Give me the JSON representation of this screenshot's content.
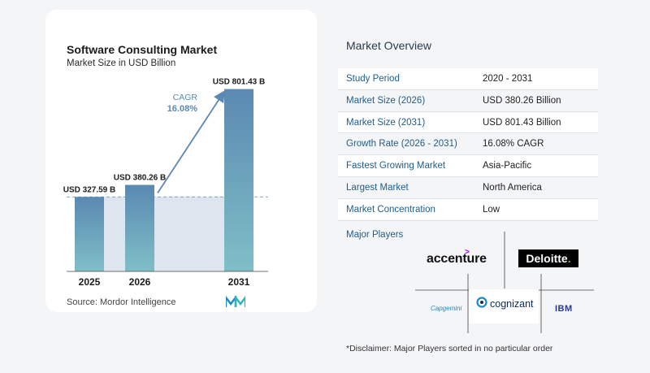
{
  "chart_data": {
    "type": "bar",
    "title": "Software Consulting Market",
    "subtitle": "Market Size in USD Billion",
    "categories": [
      "2025",
      "2026",
      "2031"
    ],
    "values": [
      327.59,
      380.26,
      801.43
    ],
    "value_labels": [
      "USD 327.59 B",
      "USD 380.26 B",
      "USD 801.43 B"
    ],
    "annotation": {
      "label": "CAGR",
      "value": "16.08%"
    },
    "ylim": [
      0,
      850
    ],
    "grid": false,
    "colors": {
      "bar_top": "#5b89b2",
      "bar_bottom": "#7fbfc7",
      "baseline_fill": "#dde6ef",
      "arrow": "#5b89b2",
      "annotation_text": "#5b89b2"
    }
  },
  "source_text": "Source:  Mordor Intelligence",
  "overview": {
    "title": "Market Overview",
    "rows": [
      {
        "label": "Study Period",
        "value": "2020 - 2031"
      },
      {
        "label": "Market Size (2026)",
        "value": "USD 380.26 Billion"
      },
      {
        "label": "Market Size (2031)",
        "value": "USD 801.43 Billion"
      },
      {
        "label": "Growth Rate (2026 - 2031)",
        "value": "16.08% CAGR"
      },
      {
        "label": "Fastest Growing Market",
        "value": "Asia-Pacific"
      },
      {
        "label": "Largest Market",
        "value": "North America"
      },
      {
        "label": "Market Concentration",
        "value": "Low"
      }
    ]
  },
  "players": {
    "title": "Major Players",
    "accenture": "accenture",
    "deloitte": "Deloitte",
    "cognizant": "cognizant",
    "capgemini": "Capgemini",
    "ibm": "IBM"
  },
  "disclaimer": "*Disclaimer: Major Players sorted in no particular order"
}
